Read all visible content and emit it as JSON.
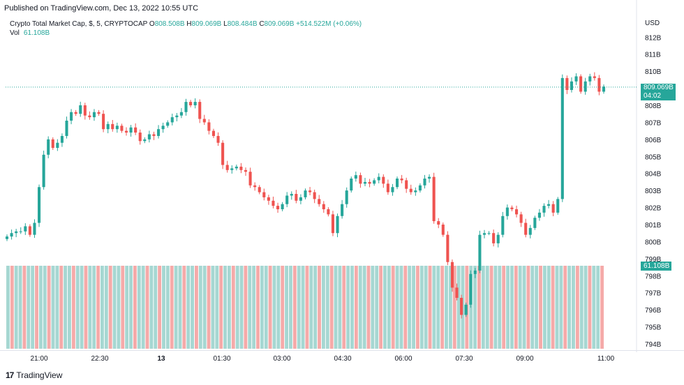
{
  "published": "Published on TradingView.com, Dec 13, 2022 10:55 UTC",
  "legend": {
    "symbol": "Crypto Total Market Cap, $, 5, CRYPTOCAP",
    "o_label": "O",
    "o_value": "808.508B",
    "h_label": "H",
    "h_value": "809.069B",
    "l_label": "L",
    "l_value": "808.484B",
    "c_label": "C",
    "c_value": "809.069B",
    "change": "+514.522M (+0.06%)"
  },
  "volume_legend": {
    "label": "Vol",
    "value": "61.108B"
  },
  "axis_unit": "USD",
  "last_price_tag": {
    "price": "809.069B",
    "countdown": "04:02"
  },
  "volume_tag": "61.108B",
  "footer": {
    "brand": "TradingView"
  },
  "colors": {
    "up": "#26a69a",
    "down": "#ef5350",
    "vol_up": "#a6d7d2",
    "vol_down": "#f5aaa9"
  },
  "chart_data": {
    "type": "candlestick",
    "title": "Crypto Total Market Cap, $, 5, CRYPTOCAP",
    "ylabel": "USD",
    "ylim": [
      793.5,
      812.5
    ],
    "y_ticks": [
      "794B",
      "795B",
      "796B",
      "797B",
      "798B",
      "799B",
      "800B",
      "801B",
      "802B",
      "803B",
      "804B",
      "805B",
      "806B",
      "807B",
      "808B",
      "809B",
      "810B",
      "811B",
      "812B"
    ],
    "x_ticks": [
      "21:00",
      "22:30",
      "13",
      "01:30",
      "03:00",
      "04:30",
      "06:00",
      "07:30",
      "09:00",
      "11:00"
    ],
    "last_price": 809.069,
    "series_closes": [
      800.3,
      800.5,
      800.6,
      800.6,
      800.9,
      800.4,
      801.1,
      803.2,
      805.1,
      806.0,
      805.5,
      805.8,
      806.2,
      807.1,
      807.6,
      807.5,
      808.0,
      807.4,
      807.3,
      807.6,
      807.5,
      806.6,
      806.9,
      806.6,
      806.8,
      806.5,
      806.4,
      806.7,
      806.4,
      805.9,
      806.0,
      806.3,
      806.2,
      806.6,
      806.8,
      807.0,
      807.3,
      807.4,
      807.6,
      808.2,
      808.0,
      808.2,
      807.2,
      807.0,
      806.5,
      806.2,
      805.8,
      804.5,
      804.2,
      804.3,
      804.4,
      804.2,
      804.1,
      803.3,
      803.2,
      802.9,
      802.6,
      802.4,
      802.1,
      801.9,
      802.2,
      802.7,
      802.8,
      802.4,
      802.6,
      803.0,
      802.9,
      802.5,
      802.2,
      801.9,
      801.6,
      800.5,
      801.5,
      802.2,
      803.0,
      803.7,
      803.9,
      803.4,
      803.5,
      803.4,
      803.6,
      803.8,
      803.4,
      802.9,
      803.2,
      803.7,
      803.6,
      803.1,
      802.9,
      803.0,
      803.3,
      803.7,
      803.8,
      801.2,
      801.0,
      800.4,
      798.8,
      797.3,
      796.7,
      795.7,
      796.3,
      798.1,
      798.3,
      800.4,
      800.5,
      800.5,
      799.9,
      800.4,
      801.5,
      802.0,
      801.9,
      801.6,
      801.1,
      800.4,
      800.8,
      801.4,
      801.7,
      802.1,
      802.2,
      801.7,
      802.5,
      809.6,
      808.9,
      809.4,
      809.7,
      808.8,
      809.4,
      809.7,
      809.6,
      808.8,
      809.1
    ],
    "volume_bars": 146
  }
}
